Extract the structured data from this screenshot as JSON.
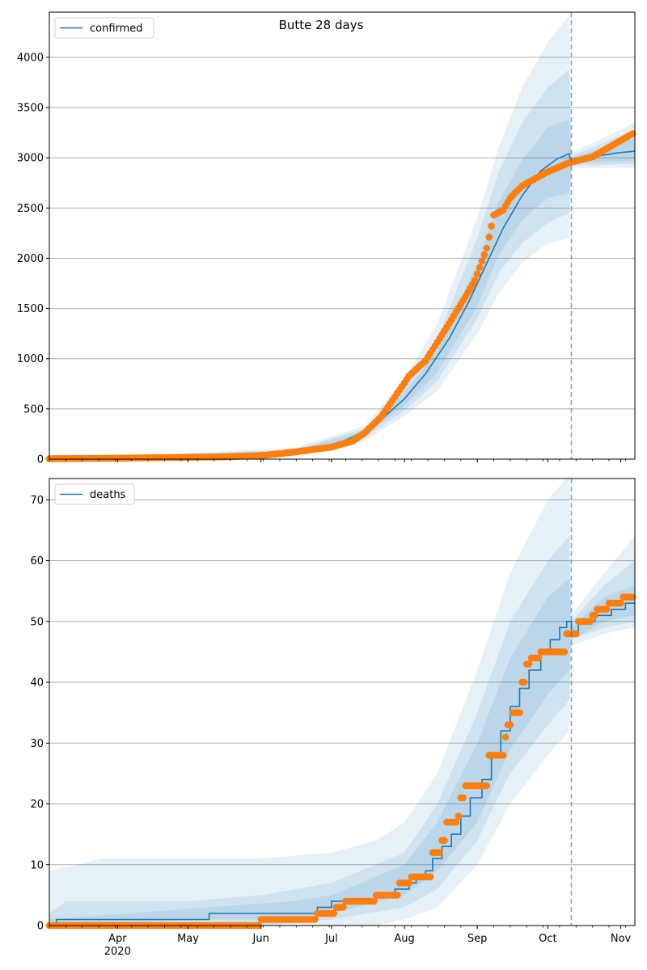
{
  "title": "Butte 28 days",
  "colors": {
    "model": "#1f77b4",
    "observed": "#ff7f0e",
    "band": "#1f77b4",
    "grid": "#b0b0b0"
  },
  "x_axis": {
    "type": "date",
    "range": [
      "2020-03-03",
      "2020-11-07"
    ],
    "month_ticks": [
      {
        "date": "2020-04-01",
        "label": "Apr",
        "sublabel": "2020"
      },
      {
        "date": "2020-05-01",
        "label": "May",
        "sublabel": ""
      },
      {
        "date": "2020-06-01",
        "label": "Jun",
        "sublabel": ""
      },
      {
        "date": "2020-07-01",
        "label": "Jul",
        "sublabel": ""
      },
      {
        "date": "2020-08-01",
        "label": "Aug",
        "sublabel": ""
      },
      {
        "date": "2020-09-01",
        "label": "Sep",
        "sublabel": ""
      },
      {
        "date": "2020-10-01",
        "label": "Oct",
        "sublabel": ""
      },
      {
        "date": "2020-11-01",
        "label": "Nov",
        "sublabel": ""
      }
    ],
    "forecast_start": "2020-10-11"
  },
  "chart_data": [
    {
      "type": "line",
      "title": "Butte 28 days",
      "legend": {
        "label": "confirmed",
        "placement": "upper-left"
      },
      "ylim": [
        0,
        4450
      ],
      "yticks": [
        0,
        500,
        1000,
        1500,
        2000,
        2500,
        3000,
        3500,
        4000
      ],
      "grid": true,
      "forecast_start": "2020-10-11",
      "model_line": {
        "name": "confirmed",
        "points": [
          [
            "2020-03-03",
            0
          ],
          [
            "2020-04-15",
            10
          ],
          [
            "2020-05-15",
            20
          ],
          [
            "2020-06-01",
            40
          ],
          [
            "2020-06-15",
            75
          ],
          [
            "2020-07-01",
            130
          ],
          [
            "2020-07-10",
            220
          ],
          [
            "2020-07-20",
            350
          ],
          [
            "2020-08-01",
            600
          ],
          [
            "2020-08-10",
            850
          ],
          [
            "2020-08-20",
            1200
          ],
          [
            "2020-08-28",
            1550
          ],
          [
            "2020-09-05",
            1950
          ],
          [
            "2020-09-12",
            2300
          ],
          [
            "2020-09-20",
            2620
          ],
          [
            "2020-09-28",
            2870
          ],
          [
            "2020-10-05",
            2990
          ],
          [
            "2020-10-10",
            3040
          ],
          [
            "2020-10-11",
            2950
          ],
          [
            "2020-10-20",
            3010
          ],
          [
            "2020-10-31",
            3050
          ],
          [
            "2020-11-07",
            3065
          ]
        ]
      },
      "bands": [
        {
          "points": [
            [
              "2020-03-03",
              0,
              0
            ],
            [
              "2020-06-15",
              50,
              110
            ],
            [
              "2020-07-15",
              180,
              330
            ],
            [
              "2020-08-01",
              430,
              800
            ],
            [
              "2020-08-15",
              680,
              1350
            ],
            [
              "2020-09-01",
              1250,
              2400
            ],
            [
              "2020-09-10",
              1650,
              3100
            ],
            [
              "2020-09-20",
              1950,
              3700
            ],
            [
              "2020-10-01",
              2150,
              4150
            ],
            [
              "2020-10-10",
              2200,
              4420
            ],
            [
              "2020-10-11",
              2900,
              3050
            ],
            [
              "2020-10-25",
              2900,
              3200
            ],
            [
              "2020-11-07",
              2900,
              3350
            ]
          ]
        },
        {
          "points": [
            [
              "2020-03-03",
              0,
              0
            ],
            [
              "2020-06-15",
              60,
              95
            ],
            [
              "2020-07-15",
              210,
              300
            ],
            [
              "2020-08-01",
              480,
              720
            ],
            [
              "2020-08-15",
              780,
              1200
            ],
            [
              "2020-09-01",
              1400,
              2200
            ],
            [
              "2020-09-10",
              1850,
              2850
            ],
            [
              "2020-09-20",
              2150,
              3350
            ],
            [
              "2020-10-01",
              2350,
              3700
            ],
            [
              "2020-10-10",
              2450,
              3880
            ],
            [
              "2020-10-11",
              2920,
              3020
            ],
            [
              "2020-10-25",
              2930,
              3150
            ],
            [
              "2020-11-07",
              2940,
              3280
            ]
          ]
        },
        {
          "points": [
            [
              "2020-03-03",
              0,
              0
            ],
            [
              "2020-06-15",
              65,
              85
            ],
            [
              "2020-07-15",
              240,
              280
            ],
            [
              "2020-08-01",
              530,
              660
            ],
            [
              "2020-08-15",
              860,
              1080
            ],
            [
              "2020-09-01",
              1520,
              1950
            ],
            [
              "2020-09-10",
              2030,
              2550
            ],
            [
              "2020-09-20",
              2380,
              2980
            ],
            [
              "2020-10-01",
              2600,
              3300
            ],
            [
              "2020-10-10",
              2650,
              3380
            ],
            [
              "2020-10-11",
              2940,
              3000
            ],
            [
              "2020-10-25",
              2960,
              3100
            ],
            [
              "2020-11-07",
              2970,
              3200
            ]
          ]
        }
      ],
      "observed": {
        "name": "observed",
        "anchors": [
          [
            "2020-03-03",
            5
          ],
          [
            "2020-03-25",
            8
          ],
          [
            "2020-04-15",
            14
          ],
          [
            "2020-05-15",
            22
          ],
          [
            "2020-06-01",
            35
          ],
          [
            "2020-06-15",
            70
          ],
          [
            "2020-07-01",
            120
          ],
          [
            "2020-07-10",
            180
          ],
          [
            "2020-07-15",
            260
          ],
          [
            "2020-07-22",
            420
          ],
          [
            "2020-07-28",
            620
          ],
          [
            "2020-08-03",
            830
          ],
          [
            "2020-08-10",
            980
          ],
          [
            "2020-08-20",
            1350
          ],
          [
            "2020-08-26",
            1580
          ],
          [
            "2020-08-31",
            1780
          ],
          [
            "2020-09-05",
            2100
          ],
          [
            "2020-09-08",
            2430
          ],
          [
            "2020-09-12",
            2480
          ],
          [
            "2020-09-15",
            2600
          ],
          [
            "2020-09-20",
            2720
          ],
          [
            "2020-09-30",
            2850
          ],
          [
            "2020-10-10",
            2950
          ],
          [
            "2020-10-20",
            3010
          ],
          [
            "2020-11-06",
            3240
          ]
        ]
      }
    },
    {
      "type": "line",
      "legend": {
        "label": "deaths",
        "placement": "upper-left"
      },
      "ylim": [
        0,
        73.5
      ],
      "yticks": [
        0,
        10,
        20,
        30,
        40,
        50,
        60,
        70
      ],
      "grid": true,
      "forecast_start": "2020-10-11",
      "model_line": {
        "name": "deaths",
        "step": true,
        "points": [
          [
            "2020-03-03",
            0
          ],
          [
            "2020-03-06",
            1
          ],
          [
            "2020-05-10",
            2
          ],
          [
            "2020-06-25",
            3
          ],
          [
            "2020-07-01",
            4
          ],
          [
            "2020-07-20",
            5
          ],
          [
            "2020-07-28",
            6
          ],
          [
            "2020-08-03",
            7
          ],
          [
            "2020-08-06",
            8
          ],
          [
            "2020-08-10",
            9
          ],
          [
            "2020-08-13",
            11
          ],
          [
            "2020-08-17",
            13
          ],
          [
            "2020-08-21",
            15
          ],
          [
            "2020-08-25",
            18
          ],
          [
            "2020-08-29",
            21
          ],
          [
            "2020-09-03",
            24
          ],
          [
            "2020-09-07",
            28
          ],
          [
            "2020-09-11",
            32
          ],
          [
            "2020-09-15",
            36
          ],
          [
            "2020-09-19",
            39
          ],
          [
            "2020-09-23",
            42
          ],
          [
            "2020-09-28",
            45
          ],
          [
            "2020-10-02",
            47
          ],
          [
            "2020-10-06",
            49
          ],
          [
            "2020-10-09",
            50
          ],
          [
            "2020-10-11",
            48
          ],
          [
            "2020-10-14",
            50
          ],
          [
            "2020-10-21",
            51
          ],
          [
            "2020-10-28",
            52
          ],
          [
            "2020-11-03",
            53
          ],
          [
            "2020-11-07",
            53
          ]
        ]
      },
      "bands": [
        {
          "points": [
            [
              "2020-03-03",
              0,
              9
            ],
            [
              "2020-03-15",
              0,
              10
            ],
            [
              "2020-03-25",
              0,
              11
            ],
            [
              "2020-06-01",
              0,
              11
            ],
            [
              "2020-07-01",
              0,
              12
            ],
            [
              "2020-07-20",
              0,
              14
            ],
            [
              "2020-08-01",
              1,
              17
            ],
            [
              "2020-08-15",
              3,
              25
            ],
            [
              "2020-09-01",
              10,
              42
            ],
            [
              "2020-09-15",
              20,
              58
            ],
            [
              "2020-10-01",
              28,
              70
            ],
            [
              "2020-10-10",
              32,
              74
            ],
            [
              "2020-10-11",
              46,
              51
            ],
            [
              "2020-10-25",
              48,
              58
            ],
            [
              "2020-11-07",
              49,
              64
            ]
          ]
        },
        {
          "points": [
            [
              "2020-03-03",
              0,
              2
            ],
            [
              "2020-03-10",
              0,
              4
            ],
            [
              "2020-05-01",
              0,
              4
            ],
            [
              "2020-06-01",
              0,
              5
            ],
            [
              "2020-07-01",
              1,
              7
            ],
            [
              "2020-08-01",
              3,
              12
            ],
            [
              "2020-08-15",
              6,
              20
            ],
            [
              "2020-09-01",
              14,
              35
            ],
            [
              "2020-09-15",
              25,
              50
            ],
            [
              "2020-10-01",
              33,
              60
            ],
            [
              "2020-10-10",
              37,
              64
            ],
            [
              "2020-10-11",
              47,
              50
            ],
            [
              "2020-10-25",
              49,
              56
            ],
            [
              "2020-11-07",
              50,
              60
            ]
          ]
        },
        {
          "points": [
            [
              "2020-03-03",
              0,
              1
            ],
            [
              "2020-05-10",
              1,
              3
            ],
            [
              "2020-06-15",
              1,
              4
            ],
            [
              "2020-07-01",
              2,
              5
            ],
            [
              "2020-08-01",
              5,
              10
            ],
            [
              "2020-08-15",
              9,
              17
            ],
            [
              "2020-09-01",
              17,
              30
            ],
            [
              "2020-09-15",
              29,
              44
            ],
            [
              "2020-10-01",
              38,
              54
            ],
            [
              "2020-10-10",
              42,
              57
            ],
            [
              "2020-10-11",
              47,
              49
            ],
            [
              "2020-10-25",
              50,
              54
            ],
            [
              "2020-11-07",
              51,
              56
            ]
          ]
        }
      ],
      "observed": {
        "name": "observed",
        "step": true,
        "anchors": [
          [
            "2020-03-03",
            0
          ],
          [
            "2020-06-01",
            1
          ],
          [
            "2020-06-25",
            2
          ],
          [
            "2020-07-03",
            3
          ],
          [
            "2020-07-07",
            4
          ],
          [
            "2020-07-20",
            5
          ],
          [
            "2020-07-30",
            7
          ],
          [
            "2020-08-04",
            8
          ],
          [
            "2020-08-13",
            12
          ],
          [
            "2020-08-17",
            14
          ],
          [
            "2020-08-19",
            17
          ],
          [
            "2020-08-24",
            18
          ],
          [
            "2020-08-25",
            21
          ],
          [
            "2020-08-27",
            23
          ],
          [
            "2020-09-06",
            28
          ],
          [
            "2020-09-13",
            31
          ],
          [
            "2020-09-14",
            33
          ],
          [
            "2020-09-16",
            35
          ],
          [
            "2020-09-20",
            40
          ],
          [
            "2020-09-22",
            43
          ],
          [
            "2020-09-24",
            44
          ],
          [
            "2020-09-28",
            45
          ],
          [
            "2020-10-09",
            48
          ],
          [
            "2020-10-14",
            50
          ],
          [
            "2020-10-20",
            51
          ],
          [
            "2020-10-22",
            52
          ],
          [
            "2020-10-27",
            53
          ],
          [
            "2020-11-02",
            54
          ],
          [
            "2020-11-06",
            54
          ]
        ]
      }
    }
  ]
}
